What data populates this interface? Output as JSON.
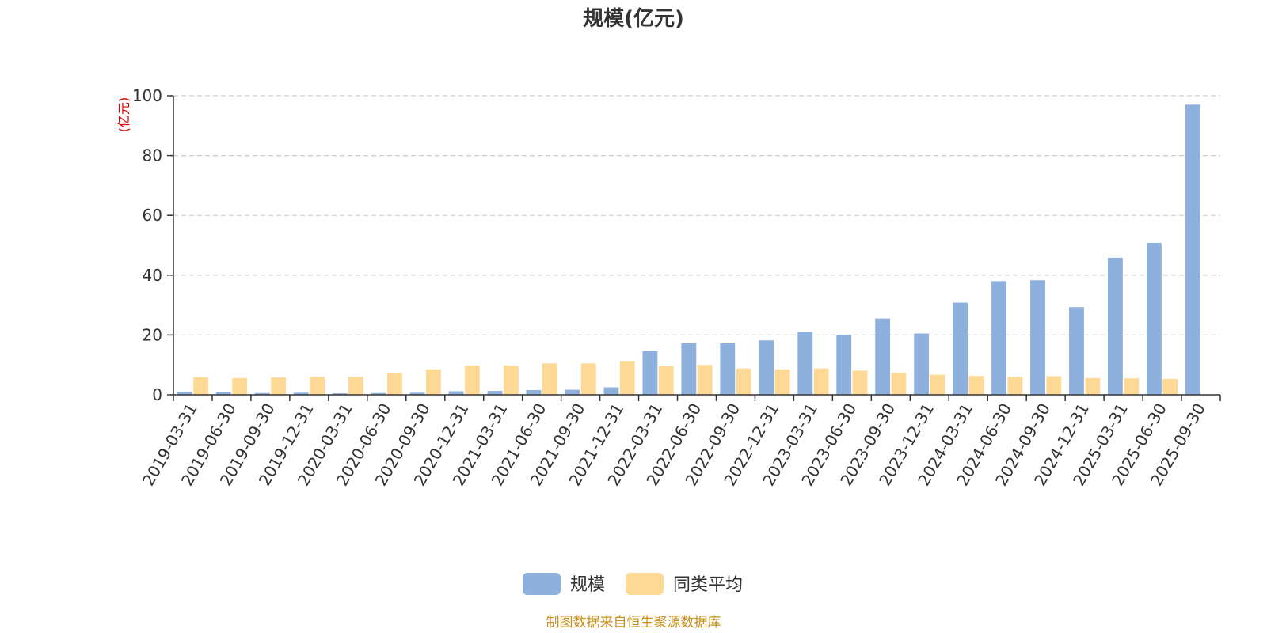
{
  "chart_data": {
    "type": "bar",
    "title": "规模(亿元)",
    "ylabel": "(亿元)",
    "ylim": [
      0,
      100
    ],
    "yticks": [
      0,
      20,
      40,
      60,
      80,
      100
    ],
    "categories": [
      "2019-03-31",
      "2019-06-30",
      "2019-09-30",
      "2019-12-31",
      "2020-03-31",
      "2020-06-30",
      "2020-09-30",
      "2020-12-31",
      "2021-03-31",
      "2021-06-30",
      "2021-09-30",
      "2021-12-31",
      "2022-03-31",
      "2022-06-30",
      "2022-09-30",
      "2022-12-31",
      "2023-03-31",
      "2023-06-30",
      "2023-09-30",
      "2023-12-31",
      "2024-03-31",
      "2024-06-30",
      "2024-09-30",
      "2024-12-31",
      "2025-03-31",
      "2025-06-30",
      "2025-09-30"
    ],
    "series": [
      {
        "name": "规模",
        "color": "#8eb0dd",
        "values": [
          0.9,
          0.8,
          0.6,
          0.7,
          0.5,
          0.6,
          0.7,
          1.2,
          1.3,
          1.6,
          1.7,
          2.5,
          14.7,
          17.2,
          17.2,
          18.2,
          21.0,
          20.0,
          25.5,
          20.5,
          30.8,
          38.0,
          38.3,
          29.3,
          45.8,
          50.8,
          97.0
        ]
      },
      {
        "name": "同类平均",
        "color": "#fdd995",
        "values": [
          5.9,
          5.6,
          5.8,
          6.0,
          6.0,
          7.2,
          8.5,
          9.8,
          9.8,
          10.5,
          10.5,
          11.3,
          9.6,
          10.0,
          8.8,
          8.5,
          8.8,
          8.1,
          7.3,
          6.7,
          6.3,
          6.0,
          6.2,
          5.6,
          5.5,
          5.3,
          null
        ]
      }
    ],
    "legend": "bottom-center",
    "grid": true,
    "source": "制图数据来自恒生聚源数据库"
  },
  "colors": {
    "axis": "#333333",
    "grid": "#cccccc",
    "unit": "#e00000",
    "source": "#c8901e"
  }
}
